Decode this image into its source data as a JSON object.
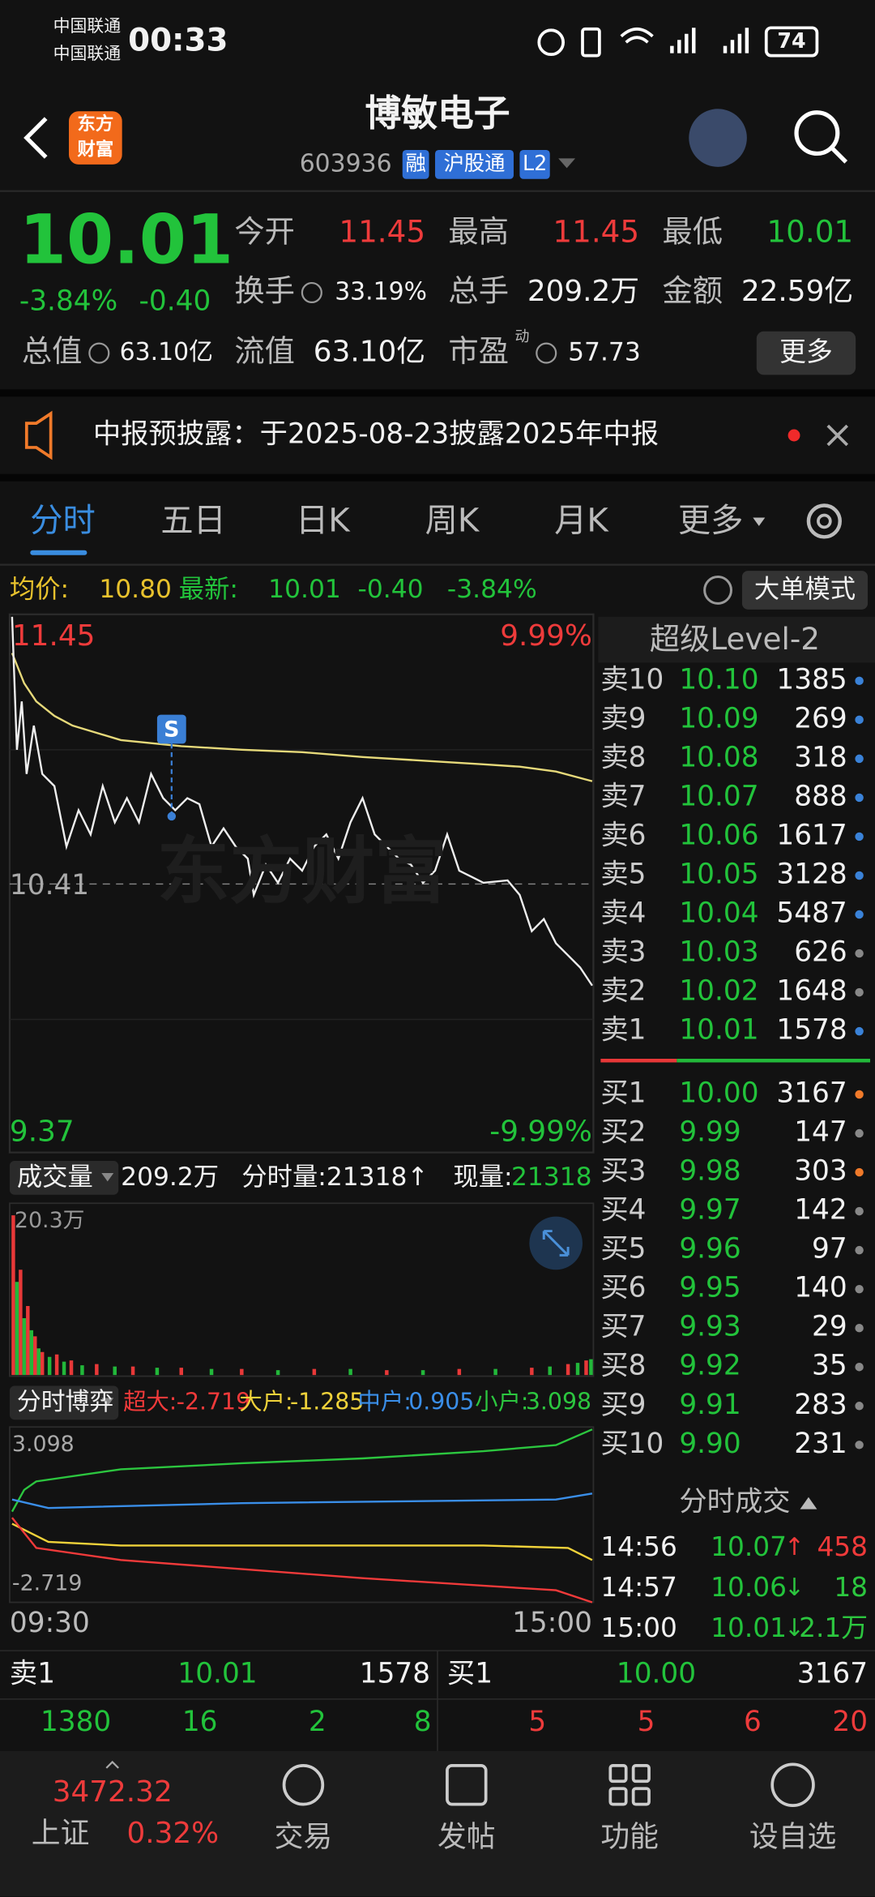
{
  "status_bar": {
    "carriers": [
      "中国联通",
      "中国联通"
    ],
    "time": "00:33",
    "battery": "74"
  },
  "header": {
    "logo": [
      "东方",
      "财富"
    ],
    "title": "博敏电子",
    "code": "603936",
    "badges": [
      "融",
      "沪股通",
      "L2"
    ]
  },
  "quote": {
    "price": "10.01",
    "change_pct": "-3.84%",
    "change": "-0.40",
    "stats": [
      {
        "label": "今开",
        "value": "11.45"
      },
      {
        "label": "最高",
        "value": "11.45"
      },
      {
        "label": "最低",
        "value": "10.01"
      },
      {
        "label": "换手",
        "value": "33.19%"
      },
      {
        "label": "总手",
        "value": "209.2万"
      },
      {
        "label": "金额",
        "value": "22.59亿"
      },
      {
        "label": "总值",
        "value": "63.10亿"
      },
      {
        "label": "流值",
        "value": "63.10亿"
      },
      {
        "label": "市盈",
        "value": "57.73",
        "note": "动"
      }
    ],
    "more": "更多"
  },
  "notice": {
    "text": "中报预披露：于2025-08-23披露2025年中报"
  },
  "tabs": [
    "分时",
    "五日",
    "日K",
    "周K",
    "月K",
    "更多"
  ],
  "summary": {
    "avg_label": "均价:",
    "avg": "10.80",
    "latest_label": "最新:",
    "latest": "10.01",
    "change": "-0.40",
    "change_pct": "-3.84%",
    "mode": "大单模式"
  },
  "price_chart": {
    "high": "11.45",
    "high_pct": "9.99%",
    "mid": "10.41",
    "low": "9.37",
    "low_pct": "-9.99%",
    "marker": "S",
    "watermark": "东方财富"
  },
  "volume": {
    "selector": "成交量",
    "total": "209.2万",
    "period": "分时量:21318↑",
    "current_label": "现量:",
    "current": "21318",
    "max": "20.3万"
  },
  "flow": {
    "selector": "分时博弈",
    "items": [
      {
        "label": "超大:",
        "value": "-2.719",
        "color": "#f03a3a"
      },
      {
        "label": "大户:",
        "value": "-1.285",
        "color": "#f0d23a"
      },
      {
        "label": "中户:",
        "value": "0.905",
        "color": "#3a8ee8"
      },
      {
        "label": "小户:",
        "value": "3.098",
        "color": "#2cc63f"
      }
    ],
    "max": "3.098",
    "min": "-2.719",
    "start": "09:30",
    "end": "15:00"
  },
  "order_book": {
    "title": "超级Level-2",
    "asks": [
      {
        "label": "卖10",
        "price": "10.10",
        "volume": "1385",
        "dot": "#3a82d8"
      },
      {
        "label": "卖9",
        "price": "10.09",
        "volume": "269",
        "dot": "#3a82d8"
      },
      {
        "label": "卖8",
        "price": "10.08",
        "volume": "318",
        "dot": "#3a82d8"
      },
      {
        "label": "卖7",
        "price": "10.07",
        "volume": "888",
        "dot": "#3a82d8"
      },
      {
        "label": "卖6",
        "price": "10.06",
        "volume": "1617",
        "dot": "#3a82d8"
      },
      {
        "label": "卖5",
        "price": "10.05",
        "volume": "3128",
        "dot": "#3a82d8"
      },
      {
        "label": "卖4",
        "price": "10.04",
        "volume": "5487",
        "dot": "#3a82d8"
      },
      {
        "label": "卖3",
        "price": "10.03",
        "volume": "626",
        "dot": "#888888"
      },
      {
        "label": "卖2",
        "price": "10.02",
        "volume": "1648",
        "dot": "#888888"
      },
      {
        "label": "卖1",
        "price": "10.01",
        "volume": "1578",
        "dot": "#3a82d8"
      }
    ],
    "bids": [
      {
        "label": "买1",
        "price": "10.00",
        "volume": "3167",
        "dot": "#f07a2a"
      },
      {
        "label": "买2",
        "price": "9.99",
        "volume": "147",
        "dot": "#888888"
      },
      {
        "label": "买3",
        "price": "9.98",
        "volume": "303",
        "dot": "#f07a2a"
      },
      {
        "label": "买4",
        "price": "9.97",
        "volume": "142",
        "dot": "#888888"
      },
      {
        "label": "买5",
        "price": "9.96",
        "volume": "97",
        "dot": "#888888"
      },
      {
        "label": "买6",
        "price": "9.95",
        "volume": "140",
        "dot": "#888888"
      },
      {
        "label": "买7",
        "price": "9.93",
        "volume": "29",
        "dot": "#888888"
      },
      {
        "label": "买8",
        "price": "9.92",
        "volume": "35",
        "dot": "#888888"
      },
      {
        "label": "买9",
        "price": "9.91",
        "volume": "283",
        "dot": "#888888"
      },
      {
        "label": "买10",
        "price": "9.90",
        "volume": "231",
        "dot": "#888888"
      }
    ]
  },
  "trades": {
    "title": "分时成交",
    "rows": [
      {
        "time": "14:56",
        "price": "10.07",
        "arrow": "↑",
        "volume": "458",
        "arrow_color": "#f03a3a",
        "volume_color": "#f03a3a"
      },
      {
        "time": "14:57",
        "price": "10.06",
        "arrow": "↓",
        "volume": "18",
        "arrow_color": "#2cc63f",
        "volume_color": "#2cc63f"
      },
      {
        "time": "15:00",
        "price": "10.01",
        "arrow": "↓",
        "volume": "2.1万",
        "arrow_color": "#2cc63f",
        "volume_color": "#2cc63f"
      }
    ]
  },
  "bottom_quote": {
    "ask": {
      "label": "卖1",
      "price": "10.01",
      "volume": "1578"
    },
    "bid": {
      "label": "买1",
      "price": "10.00",
      "volume": "3167"
    },
    "ask_counts": [
      "1380",
      "16",
      "2",
      "8"
    ],
    "bid_counts": [
      "5",
      "5",
      "6",
      "20"
    ]
  },
  "nav": {
    "index_value": "3472.32",
    "index_name": "上证",
    "index_change": "0.32%",
    "items": [
      "交易",
      "发帖",
      "功能",
      "设自选"
    ]
  }
}
